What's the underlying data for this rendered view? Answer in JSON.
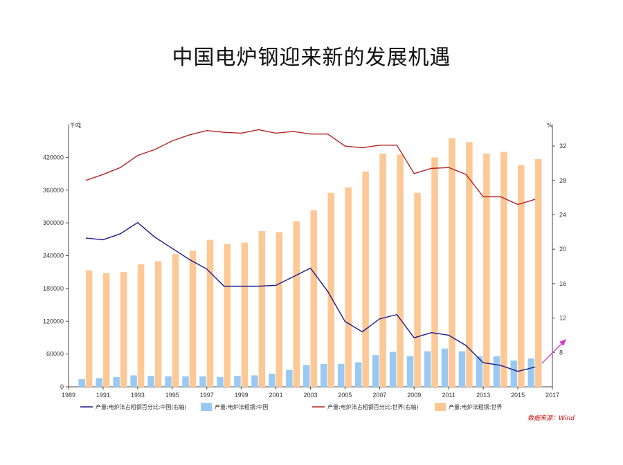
{
  "page": {
    "title": "中国电炉钢迎来新的发展机遇",
    "source": "数据来源：Wind"
  },
  "chart_data": {
    "type": "bar",
    "title": "中国电炉钢迎来新的发展机遇",
    "x": [
      1990,
      1991,
      1992,
      1993,
      1994,
      1995,
      1996,
      1997,
      1998,
      1999,
      2000,
      2001,
      2002,
      2003,
      2004,
      2005,
      2006,
      2007,
      2008,
      2009,
      2010,
      2011,
      2012,
      2013,
      2014,
      2015,
      2016
    ],
    "xlim": [
      1989,
      2017
    ],
    "x_ticks": [
      1989,
      1991,
      1993,
      1995,
      1997,
      1999,
      2001,
      2003,
      2005,
      2007,
      2009,
      2011,
      2013,
      2015,
      2017
    ],
    "y_left": {
      "unit": "千吨",
      "lim": [
        0,
        480000
      ],
      "ticks": [
        0,
        60000,
        120000,
        180000,
        240000,
        300000,
        360000,
        420000
      ]
    },
    "y_right": {
      "unit": "%",
      "lim": [
        4,
        34.5
      ],
      "ticks": [
        8,
        12,
        16,
        20,
        24,
        28,
        32
      ]
    },
    "series": [
      {
        "name": "产量:电炉法占粗钢百分比:中国(右轴)",
        "type": "line",
        "axis": "right",
        "color": "#1a1a8c",
        "values": [
          21.3,
          21.1,
          21.8,
          23.1,
          21.4,
          20.1,
          18.8,
          17.7,
          15.7,
          15.7,
          15.7,
          15.8,
          16.8,
          17.8,
          15.1,
          11.6,
          10.4,
          11.9,
          12.4,
          9.7,
          10.3,
          10.0,
          8.8,
          6.8,
          6.5,
          5.8,
          6.3
        ]
      },
      {
        "name": "产量:电炉法粗钢:中国",
        "type": "bar",
        "axis": "left",
        "color": "#99c9f2",
        "values": [
          14000,
          16000,
          18000,
          21000,
          20000,
          19000,
          19000,
          19000,
          18000,
          20000,
          21000,
          24000,
          31000,
          40000,
          42000,
          42000,
          45000,
          58000,
          64000,
          56000,
          65000,
          70000,
          65000,
          56000,
          56000,
          48000,
          52000
        ]
      },
      {
        "name": "产量:电炉法占粗钢百分比:世界(右轴)",
        "type": "line",
        "axis": "right",
        "color": "#b22222",
        "values": [
          28.0,
          28.7,
          29.5,
          30.9,
          31.6,
          32.6,
          33.3,
          33.8,
          33.6,
          33.5,
          33.9,
          33.5,
          33.7,
          33.4,
          33.4,
          32.0,
          31.8,
          32.1,
          32.1,
          28.8,
          29.4,
          29.5,
          28.7,
          26.1,
          26.1,
          25.2,
          25.8
        ]
      },
      {
        "name": "产量:电炉法粗钢:世界",
        "type": "bar",
        "axis": "left",
        "color": "#fcc896",
        "values": [
          213000,
          208000,
          210000,
          224000,
          230000,
          243000,
          249000,
          269000,
          261000,
          264000,
          285000,
          283000,
          303000,
          323000,
          355000,
          365000,
          394000,
          427000,
          425000,
          355000,
          420000,
          455000,
          448000,
          427000,
          430000,
          406000,
          417000
        ]
      }
    ],
    "legend_position": "bottom",
    "grid": false
  }
}
